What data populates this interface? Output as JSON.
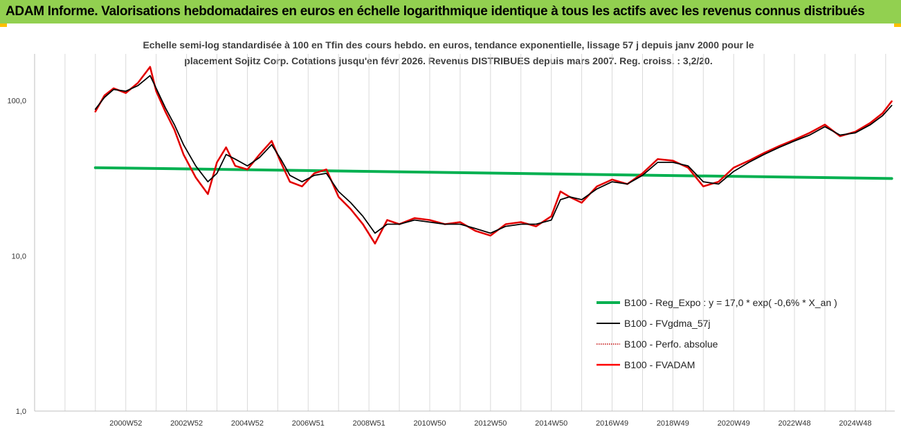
{
  "page": {
    "banner_title": "ADAM Informe. Valorisations hebdomadaires en euros en échelle logarithmique identique à tous les actifs avec les revenus connus distribués",
    "banner_color": "#92d050",
    "corner_color": "#ffc000"
  },
  "chart_data": {
    "type": "line",
    "subtitle_lines": [
      "Echelle semi-log standardisée à 100 en Tfin des cours hebdo. en euros, tendance exponentielle, lissage 57 j depuis janv 2000 pour le",
      "placement Sojitz Corp. Cotations jusqu'en févr 2026. Revenus DISTRIBUES depuis mars 2007. Reg. croiss. : 3,2/20."
    ],
    "y_scale": "log",
    "ylim": [
      1,
      200
    ],
    "y_ticks": [
      {
        "value": 1,
        "label": "1,0"
      },
      {
        "value": 10,
        "label": "10,0"
      },
      {
        "value": 100,
        "label": "100,0"
      }
    ],
    "xlim": [
      1998.0,
      2026.3
    ],
    "x_ticks": [
      {
        "value": 2001.0,
        "label": "2000W52"
      },
      {
        "value": 2003.0,
        "label": "2002W52"
      },
      {
        "value": 2005.0,
        "label": "2004W52"
      },
      {
        "value": 2007.0,
        "label": "2006W51"
      },
      {
        "value": 2009.0,
        "label": "2008W51"
      },
      {
        "value": 2011.0,
        "label": "2010W50"
      },
      {
        "value": 2013.0,
        "label": "2012W50"
      },
      {
        "value": 2015.0,
        "label": "2014W50"
      },
      {
        "value": 2017.0,
        "label": "2016W49"
      },
      {
        "value": 2019.0,
        "label": "2018W49"
      },
      {
        "value": 2021.0,
        "label": "2020W49"
      },
      {
        "value": 2023.0,
        "label": "2022W48"
      },
      {
        "value": 2025.0,
        "label": "2024W48"
      }
    ],
    "grid": "vertical",
    "legend_position": "bottom-right",
    "series": [
      {
        "name": "B100 - Reg_Expo : y = 17,0 * exp( -0,6% *  X_an )",
        "color": "#00b050",
        "style": "solid",
        "x": [
          2000.0,
          2026.2
        ],
        "y": [
          37.0,
          31.5
        ]
      },
      {
        "name": "B100 - FVgdma_57j",
        "color": "#000000",
        "style": "solid",
        "x": [
          2000.0,
          2000.3,
          2000.6,
          2001.0,
          2001.4,
          2001.8,
          2002.0,
          2002.3,
          2002.6,
          2002.9,
          2003.3,
          2003.7,
          2004.0,
          2004.3,
          2004.6,
          2005.0,
          2005.4,
          2005.8,
          2006.1,
          2006.4,
          2006.8,
          2007.2,
          2007.6,
          2008.0,
          2008.4,
          2008.8,
          2009.2,
          2009.6,
          2010.0,
          2010.5,
          2011.0,
          2011.5,
          2012.0,
          2012.5,
          2013.0,
          2013.5,
          2014.0,
          2014.5,
          2015.0,
          2015.3,
          2015.6,
          2016.0,
          2016.5,
          2017.0,
          2017.5,
          2018.0,
          2018.5,
          2019.0,
          2019.5,
          2020.0,
          2020.5,
          2021.0,
          2021.5,
          2022.0,
          2022.5,
          2023.0,
          2023.5,
          2024.0,
          2024.5,
          2025.0,
          2025.5,
          2025.9,
          2026.2
        ],
        "y": [
          88,
          105,
          118,
          115,
          125,
          145,
          120,
          90,
          70,
          52,
          38,
          30,
          34,
          45,
          42,
          38,
          43,
          52,
          42,
          33,
          30,
          33,
          34,
          26,
          22,
          18,
          14,
          16,
          16,
          17,
          16.5,
          16,
          16,
          15,
          14,
          15.5,
          16,
          16,
          17,
          23,
          24,
          23,
          27,
          30,
          29,
          33,
          40,
          40,
          38,
          30,
          29,
          35,
          40,
          45,
          50,
          55,
          60,
          68,
          60,
          62,
          70,
          80,
          93
        ]
      },
      {
        "name": "B100 - Perfo. absolue",
        "color": "#c00000",
        "style": "dotted",
        "x": [
          2000.0,
          2000.3,
          2000.6,
          2001.0,
          2001.4,
          2001.8,
          2002.0,
          2002.3,
          2002.6,
          2002.9,
          2003.3,
          2003.7,
          2004.0,
          2004.3,
          2004.6,
          2005.0,
          2005.4,
          2005.8,
          2006.1,
          2006.4,
          2006.8,
          2007.2,
          2007.6,
          2008.0,
          2008.4,
          2008.8,
          2009.2,
          2009.6,
          2010.0,
          2010.5,
          2011.0,
          2011.5,
          2012.0,
          2012.5,
          2013.0,
          2013.5,
          2014.0,
          2014.5,
          2015.0,
          2015.3,
          2015.6,
          2016.0,
          2016.5,
          2017.0,
          2017.5,
          2018.0,
          2018.5,
          2019.0,
          2019.5,
          2020.0,
          2020.5,
          2021.0,
          2021.5,
          2022.0,
          2022.5,
          2023.0,
          2023.5,
          2024.0,
          2024.5,
          2025.0,
          2025.5,
          2025.9,
          2026.2
        ],
        "y": [
          85,
          108,
          120,
          112,
          130,
          165,
          115,
          85,
          65,
          45,
          32,
          25,
          40,
          50,
          38,
          36,
          45,
          55,
          40,
          30,
          28,
          34,
          36,
          24,
          20,
          16,
          12,
          17,
          16,
          17.5,
          17,
          16,
          16.5,
          14.5,
          13.5,
          16,
          16.5,
          15.5,
          18,
          26,
          24,
          22,
          28,
          31,
          29,
          34,
          42,
          41,
          37,
          28,
          30,
          37,
          41,
          46,
          51,
          56,
          62,
          70,
          59,
          63,
          72,
          83,
          99
        ]
      },
      {
        "name": "B100 - FVADAM",
        "color": "#ff0000",
        "style": "solid",
        "x": [
          2000.0,
          2000.3,
          2000.6,
          2001.0,
          2001.4,
          2001.8,
          2002.0,
          2002.3,
          2002.6,
          2002.9,
          2003.3,
          2003.7,
          2004.0,
          2004.3,
          2004.6,
          2005.0,
          2005.4,
          2005.8,
          2006.1,
          2006.4,
          2006.8,
          2007.2,
          2007.6,
          2008.0,
          2008.4,
          2008.8,
          2009.2,
          2009.6,
          2010.0,
          2010.5,
          2011.0,
          2011.5,
          2012.0,
          2012.5,
          2013.0,
          2013.5,
          2014.0,
          2014.5,
          2015.0,
          2015.3,
          2015.6,
          2016.0,
          2016.5,
          2017.0,
          2017.5,
          2018.0,
          2018.5,
          2019.0,
          2019.5,
          2020.0,
          2020.5,
          2021.0,
          2021.5,
          2022.0,
          2022.5,
          2023.0,
          2023.5,
          2024.0,
          2024.5,
          2025.0,
          2025.5,
          2025.9,
          2026.2
        ],
        "y": [
          85,
          108,
          120,
          112,
          130,
          165,
          115,
          85,
          65,
          45,
          32,
          25,
          40,
          50,
          38,
          36,
          45,
          55,
          40,
          30,
          28,
          34,
          36,
          24,
          20,
          16,
          12,
          17,
          16,
          17.5,
          17,
          16,
          16.5,
          14.5,
          13.5,
          16,
          16.5,
          15.5,
          18,
          26,
          24,
          22,
          28,
          31,
          29,
          34,
          42,
          41,
          37,
          28,
          30,
          37,
          41,
          46,
          51,
          56,
          62,
          70,
          59,
          63,
          72,
          83,
          99
        ]
      }
    ]
  }
}
